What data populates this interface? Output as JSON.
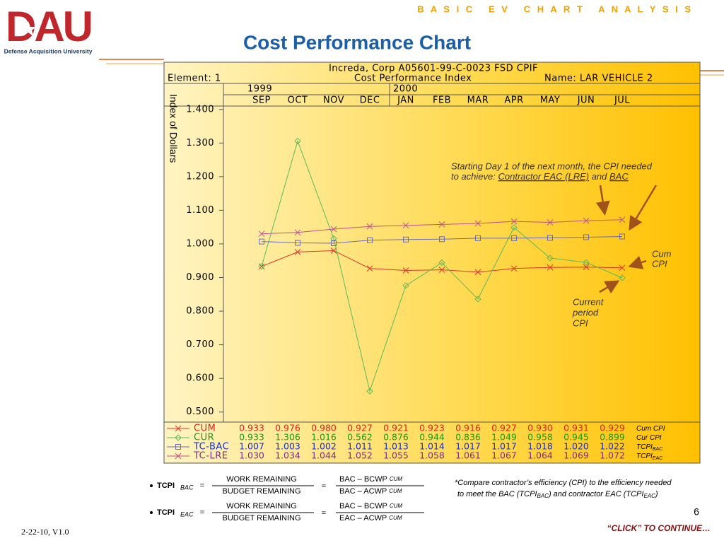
{
  "slide": {
    "banner": "B A S I C   E V   C H A R T   A N A L Y S I S",
    "title": "Cost Performance Chart",
    "logo_text": "DAU",
    "logo_subtitle": "Defense Acquisition University",
    "date": "2-22-10, V1.0",
    "page_number": "6",
    "continue": "“CLICK” TO CONTINUE…",
    "equals": "=",
    "formulas": [
      {
        "lhs": "TCPI",
        "lhs_sub": "BAC",
        "num1": "WORK REMAINING",
        "den1": "BUDGET REMAINING",
        "num2": "BAC – BCWP",
        "num2_sub": "CUM",
        "den2": "BAC – ACWP",
        "den2_sub": "CUM"
      },
      {
        "lhs": "TCPI",
        "lhs_sub": "EAC",
        "num1": "WORK REMAINING",
        "den1": "BUDGET REMAINING",
        "num2": "BAC – BCWP",
        "num2_sub": "CUM",
        "den2": "EAC – ACWP",
        "den2_sub": "CUM"
      }
    ],
    "note": {
      "line1": "*Compare contractor’s efficiency (CPI) to the efficiency needed",
      "a": "to meet the BAC (TCPI",
      "sub1": "BAC",
      "b": ") and contractor EAC (TCPI",
      "sub2": "EAC",
      "c": ")"
    }
  },
  "chart_data": {
    "type": "line",
    "title": "Increda, Corp A05601-99-C-0023 FSD CPIF",
    "element": "Element: 1",
    "subtitle": "Cost Performance Index",
    "name": "Name: LAR VEHICLE 2",
    "y_label": "Index of Dollars",
    "years": [
      "1999",
      "2000"
    ],
    "categories": [
      "SEP",
      "OCT",
      "NOV",
      "DEC",
      "JAN",
      "FEB",
      "MAR",
      "APR",
      "MAY",
      "JUN",
      "JUL"
    ],
    "ylim": [
      0.47,
      1.41
    ],
    "yticks": [
      {
        "value": 1.4,
        "label": "1.400"
      },
      {
        "value": 1.3,
        "label": "1.300"
      },
      {
        "value": 1.2,
        "label": "1.200"
      },
      {
        "value": 1.1,
        "label": "1.100"
      },
      {
        "value": 1.0,
        "label": "1.000"
      },
      {
        "value": 0.9,
        "label": "0.900"
      },
      {
        "value": 0.8,
        "label": "0.800"
      },
      {
        "value": 0.7,
        "label": "0.700"
      },
      {
        "value": 0.6,
        "label": "0.600"
      },
      {
        "value": 0.5,
        "label": "0.500"
      }
    ],
    "series": [
      {
        "name": "CUM",
        "legend": "Cum CPI",
        "legend_sub": "",
        "color": "#e0342a",
        "text_color": "#e0201a",
        "marker": "x",
        "values": [
          0.933,
          0.976,
          0.98,
          0.927,
          0.921,
          0.923,
          0.916,
          0.927,
          0.93,
          0.931,
          0.929
        ],
        "value_labels": [
          "0.933",
          "0.976",
          "0.980",
          "0.927",
          "0.921",
          "0.923",
          "0.916",
          "0.927",
          "0.930",
          "0.931",
          "0.929"
        ]
      },
      {
        "name": "CUR",
        "legend": "Cur CPI",
        "legend_sub": "",
        "color": "#5cb85c",
        "text_color": "#1a9a1a",
        "marker": "diamond",
        "values": [
          0.933,
          1.306,
          1.016,
          0.562,
          0.876,
          0.944,
          0.836,
          1.049,
          0.958,
          0.945,
          0.899
        ],
        "value_labels": [
          "0.933",
          "1.306",
          "1.016",
          "0.562",
          "0.876",
          "0.944",
          "0.836",
          "1.049",
          "0.958",
          "0.945",
          "0.899"
        ]
      },
      {
        "name": "TC-BAC",
        "legend": "TCPI",
        "legend_sub": "BAC",
        "color": "#6a6ab8",
        "text_color": "#1a2ec8",
        "marker": "square",
        "values": [
          1.007,
          1.003,
          1.002,
          1.011,
          1.013,
          1.014,
          1.017,
          1.017,
          1.018,
          1.02,
          1.022
        ],
        "value_labels": [
          "1.007",
          "1.003",
          "1.002",
          "1.011",
          "1.013",
          "1.014",
          "1.017",
          "1.017",
          "1.018",
          "1.020",
          "1.022"
        ]
      },
      {
        "name": "TC-LRE",
        "legend": "TCPI",
        "legend_sub": "EAC",
        "color": "#c0508a",
        "text_color": "#7a2a8a",
        "marker": "x",
        "values": [
          1.03,
          1.034,
          1.044,
          1.052,
          1.055,
          1.058,
          1.061,
          1.067,
          1.064,
          1.069,
          1.072
        ],
        "value_labels": [
          "1.030",
          "1.034",
          "1.044",
          "1.052",
          "1.055",
          "1.058",
          "1.061",
          "1.067",
          "1.064",
          "1.069",
          "1.072"
        ]
      }
    ],
    "annotations": {
      "needed_1": "Starting Day 1 of the next month, the CPI needed",
      "needed_2": "to achieve: ",
      "needed_eac": "Contractor EAC (LRE)",
      "needed_and": " and ",
      "needed_bac": "BAC",
      "cum": [
        "Cum",
        "CPI"
      ],
      "current": [
        "Current",
        "period",
        "CPI"
      ]
    }
  }
}
